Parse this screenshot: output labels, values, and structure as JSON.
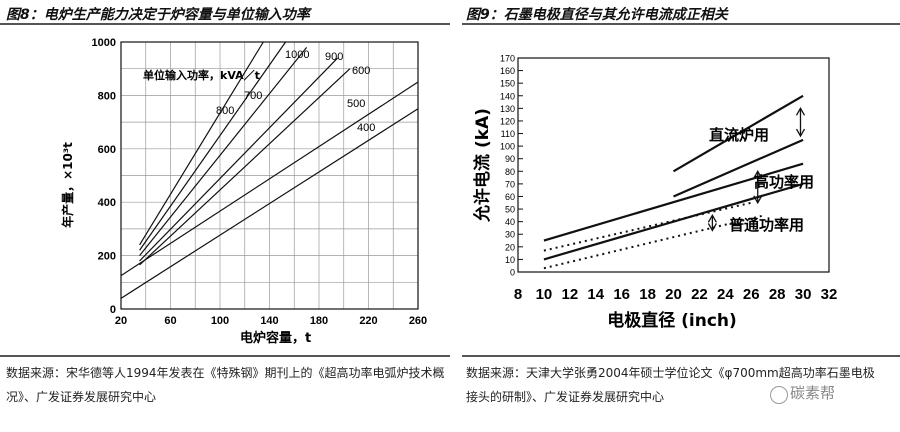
{
  "figures": {
    "left_title": "图8：电炉生产能力决定于炉容量与单位输入功率",
    "right_title": "图9：石墨电极直径与其允许电流成正相关"
  },
  "sources": {
    "left": "数据来源：宋华德等人1994年发表在《特殊钢》期刊上的《超高功率电弧炉技术概况》、广发证券发展研究中心",
    "right": "数据来源：天津大学张勇2004年硕士学位论文《φ700mm超高功率石墨电极接头的研制》、广发证券发展研究中心"
  },
  "watermark": "碳素帮",
  "chart_data": [
    {
      "type": "line",
      "title": "",
      "xlabel": "电炉容量，t",
      "ylabel": "年产量，×10³t",
      "legend_title": "单位输入功率，kVA／t",
      "xlim": [
        20,
        260
      ],
      "ylim": [
        0,
        1000
      ],
      "x_ticks": [
        20,
        60,
        100,
        140,
        180,
        220,
        260
      ],
      "y_ticks": [
        0,
        200,
        400,
        600,
        800,
        1000
      ],
      "grid": true,
      "series": [
        {
          "name": "1000",
          "x": [
            35,
            135
          ],
          "y": [
            240,
            1000
          ]
        },
        {
          "name": "900",
          "x": [
            35,
            153
          ],
          "y": [
            220,
            1000
          ]
        },
        {
          "name": "800",
          "x": [
            35,
            170
          ],
          "y": [
            200,
            980
          ]
        },
        {
          "name": "700",
          "x": [
            35,
            195
          ],
          "y": [
            180,
            940
          ]
        },
        {
          "name": "600",
          "x": [
            35,
            205
          ],
          "y": [
            165,
            900
          ]
        },
        {
          "name": "500",
          "x": [
            20,
            260
          ],
          "y": [
            125,
            850
          ]
        },
        {
          "name": "400",
          "x": [
            20,
            260
          ],
          "y": [
            40,
            750
          ]
        }
      ]
    },
    {
      "type": "line",
      "title": "",
      "xlabel": "电极直径 (inch)",
      "ylabel": "允许电流 (kA)",
      "xlim": [
        8,
        32
      ],
      "ylim": [
        0,
        170
      ],
      "x_ticks": [
        8,
        10,
        12,
        14,
        16,
        18,
        20,
        22,
        24,
        26,
        28,
        30,
        32
      ],
      "y_ticks": [
        0,
        10,
        20,
        30,
        40,
        50,
        60,
        70,
        80,
        90,
        100,
        110,
        120,
        130,
        140,
        150,
        160,
        170
      ],
      "grid": false,
      "series": [
        {
          "name": "直流炉用",
          "style": "band",
          "upper": {
            "x": [
              20,
              30
            ],
            "y": [
              80,
              140
            ]
          },
          "lower": {
            "x": [
              20,
              30
            ],
            "y": [
              60,
              105
            ]
          }
        },
        {
          "name": "高功率用",
          "style": "band",
          "upper": {
            "x": [
              10,
              30
            ],
            "y": [
              25,
              86
            ]
          },
          "lower": {
            "x": [
              10,
              30
            ],
            "y": [
              10,
              70
            ]
          }
        },
        {
          "name": "普通功率用",
          "style": "band-dotted",
          "upper": {
            "x": [
              10,
              26
            ],
            "y": [
              17,
              55
            ]
          },
          "lower": {
            "x": [
              10,
              27
            ],
            "y": [
              3,
              45
            ]
          }
        }
      ]
    }
  ]
}
